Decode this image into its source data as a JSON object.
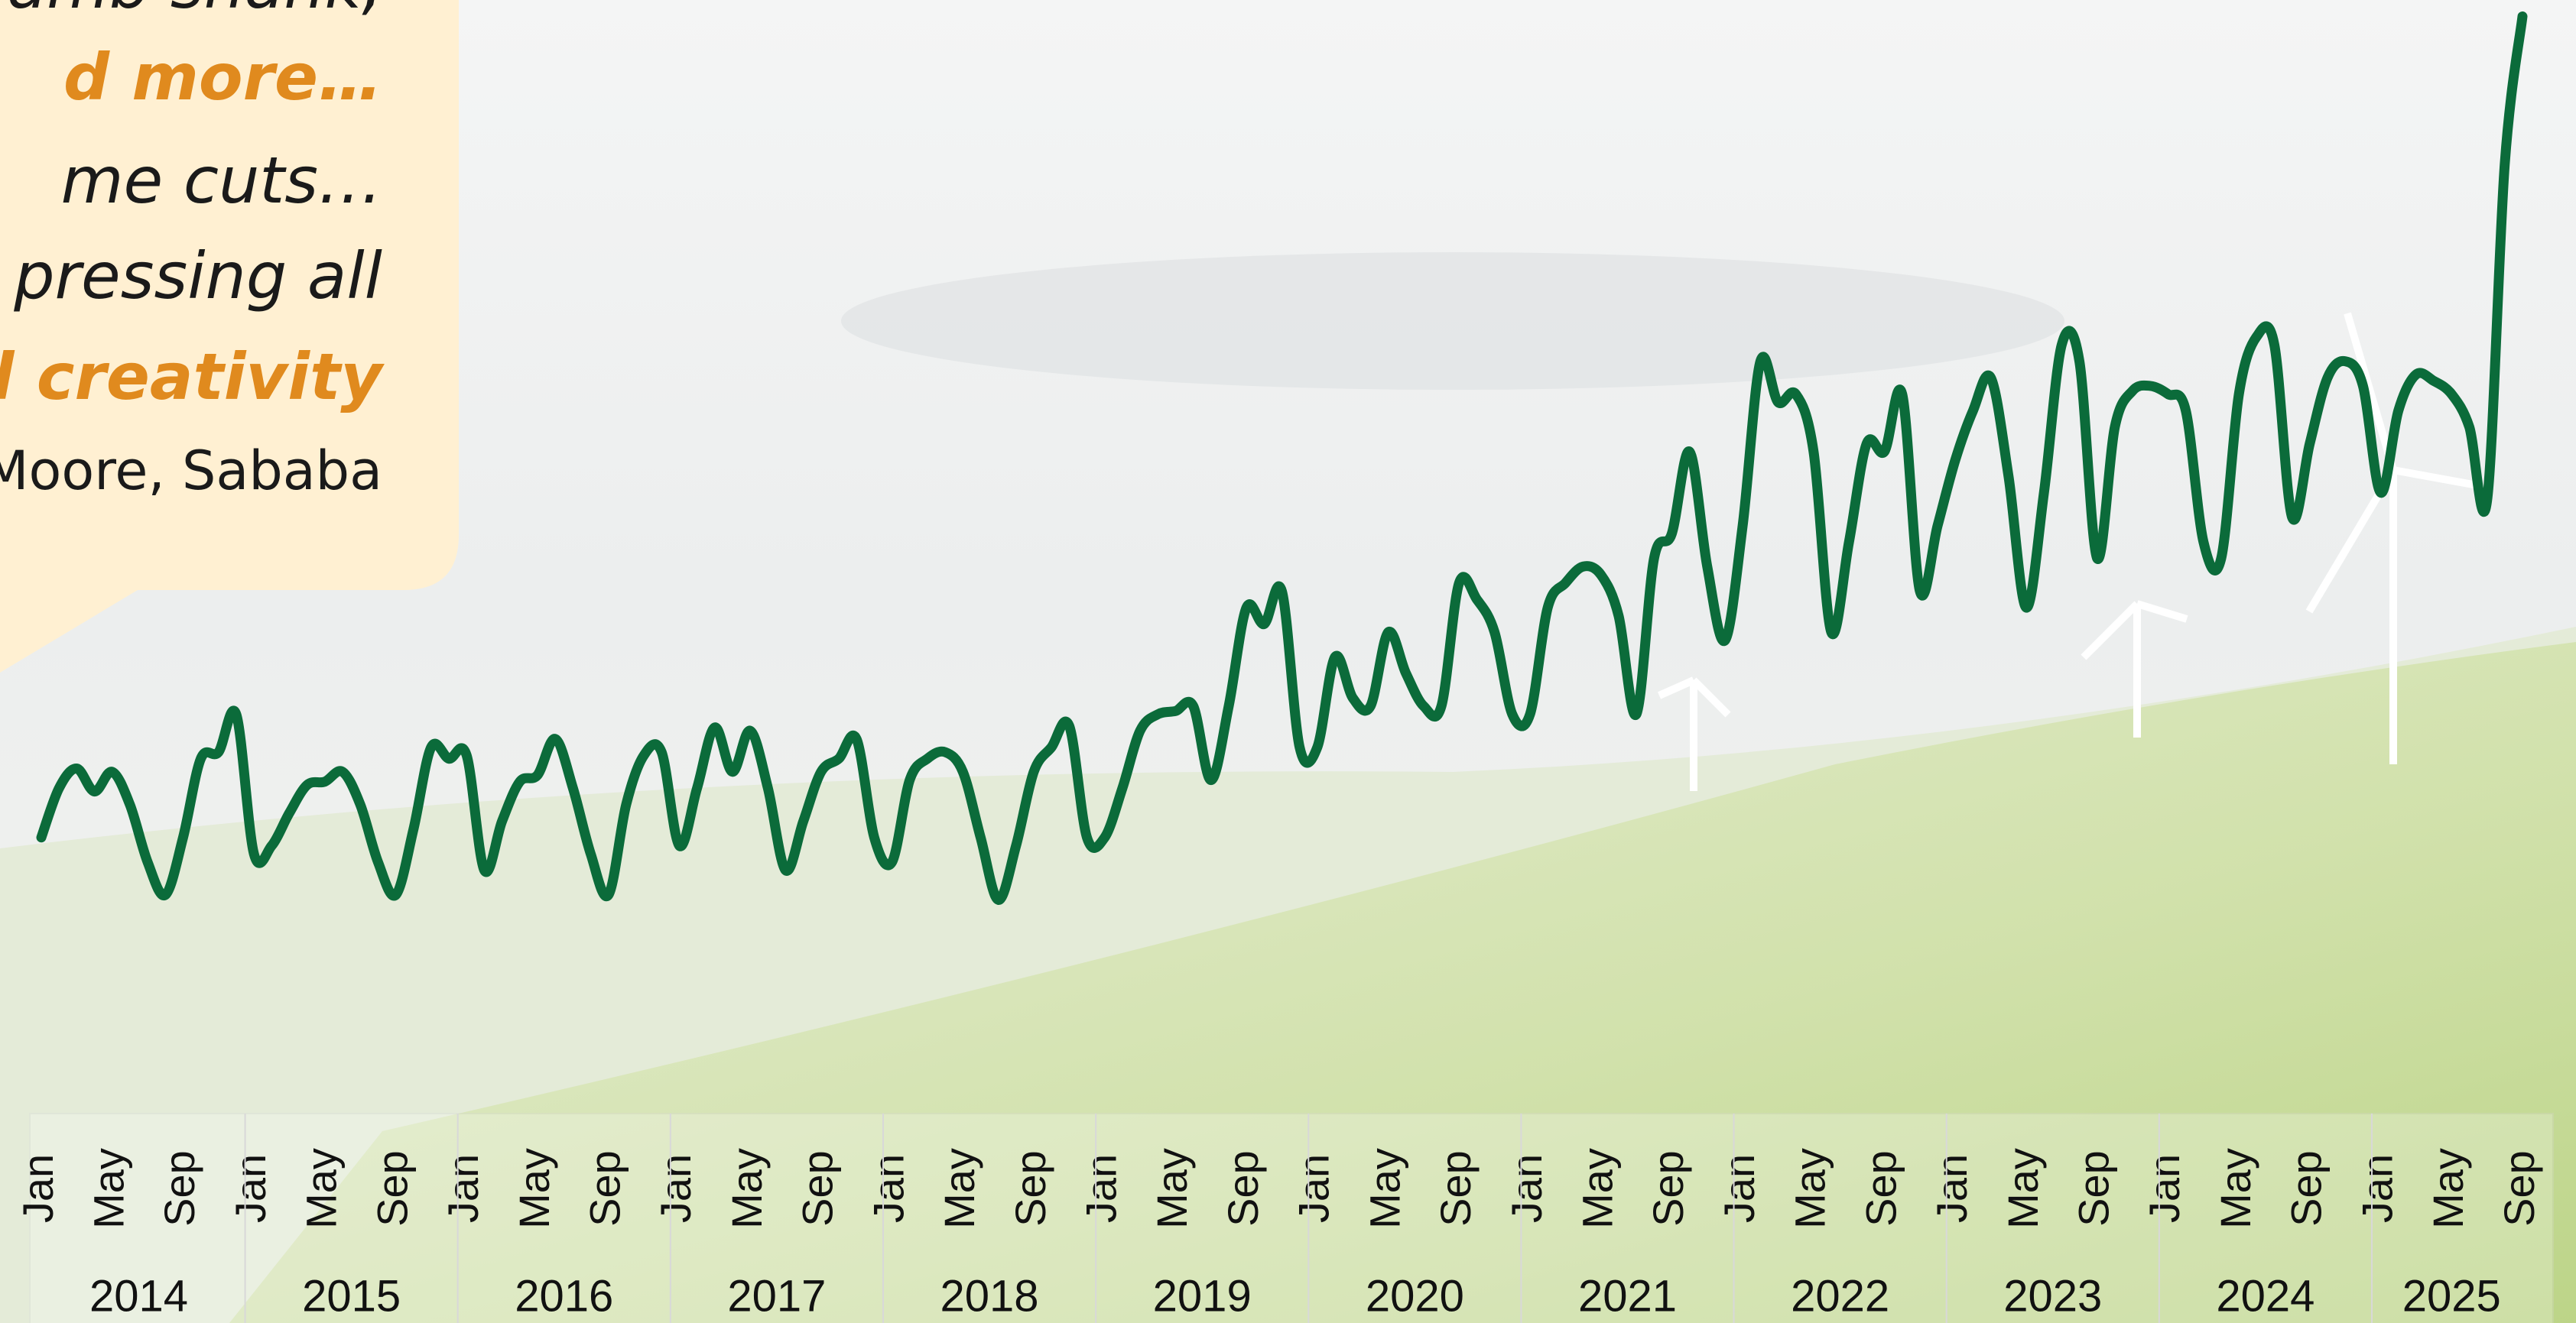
{
  "callout": {
    "lines": [
      {
        "text": "amb shank,",
        "style": "plain"
      },
      {
        "text": "d more…",
        "style": "highlight"
      },
      {
        "text": "me cuts…",
        "style": "plain"
      },
      {
        "text": "pressing all",
        "style": "plain"
      },
      {
        "text": "l creativity",
        "style": "highlight"
      },
      {
        "text": "Moore, Sababa",
        "style": "byline"
      }
    ]
  },
  "chart_data": {
    "type": "line",
    "categories": [
      "Jan",
      null,
      null,
      null,
      "May",
      null,
      null,
      null,
      "Sep",
      null,
      null,
      null,
      "Jan",
      null,
      null,
      null,
      "May",
      null,
      null,
      null,
      "Sep",
      null,
      null,
      null,
      "Jan",
      null,
      null,
      null,
      "May",
      null,
      null,
      null,
      "Sep",
      null,
      null,
      null,
      "Jan",
      null,
      null,
      null,
      "May",
      null,
      null,
      null,
      "Sep",
      null,
      null,
      null,
      "Jan",
      null,
      null,
      null,
      "May",
      null,
      null,
      null,
      "Sep",
      null,
      null,
      null,
      "Jan",
      null,
      null,
      null,
      "May",
      null,
      null,
      null,
      "Sep",
      null,
      null,
      null,
      "Jan",
      null,
      null,
      null,
      "May",
      null,
      null,
      null,
      "Sep",
      null,
      null,
      null,
      "Jan",
      null,
      null,
      null,
      "May",
      null,
      null,
      null,
      "Sep",
      null,
      null,
      null,
      "Jan",
      null,
      null,
      null,
      "May",
      null,
      null,
      null,
      "Sep",
      null,
      null,
      null,
      "Jan",
      null,
      null,
      null,
      "May",
      null,
      null,
      null,
      "Sep",
      null,
      null,
      null,
      "Jan",
      null,
      null,
      null,
      "May",
      null,
      null,
      null,
      "Sep",
      null,
      null,
      null,
      "Jan",
      null,
      null,
      null,
      "May",
      null,
      null,
      null,
      "Sep"
    ],
    "groups": [
      "2014",
      "2015",
      "2016",
      "2017",
      "2018",
      "2019",
      "2020",
      "2021",
      "2022",
      "2023",
      "2024",
      "2025"
    ],
    "series": [
      {
        "color": "#0b6b3a",
        "values": [
          190,
          220,
          232,
          218,
          230,
          210,
          175,
          155,
          190,
          238,
          242,
          265,
          180,
          185,
          205,
          222,
          224,
          230,
          210,
          175,
          155,
          195,
          245,
          238,
          240,
          170,
          200,
          224,
          228,
          250,
          220,
          180,
          155,
          210,
          240,
          242,
          185,
          220,
          257,
          230,
          255,
          220,
          170,
          200,
          230,
          238,
          250,
          190,
          175,
          225,
          238,
          242,
          230,
          190,
          152,
          185,
          230,
          245,
          258,
          190,
          190,
          220,
          255,
          265,
          267,
          270,
          225,
          270,
          330,
          320,
          340,
          245,
          245,
          300,
          275,
          270,
          315,
          290,
          270,
          270,
          345,
          335,
          315,
          265,
          265,
          330,
          345,
          355,
          350,
          325,
          265,
          360,
          375,
          425,
          355,
          310,
          380,
          480,
          455,
          460,
          425,
          315,
          370,
          430,
          425,
          460,
          340,
          380,
          420,
          450,
          470,
          410,
          330,
          400,
          490,
          480,
          360,
          440,
          462,
          465,
          460,
          450,
          370,
          360,
          460,
          495,
          490,
          385,
          430,
          470,
          480,
          465,
          400,
          450,
          472,
          468,
          460,
          440,
          395,
          600,
          690
        ]
      }
    ],
    "ylim": [
      0,
      700
    ]
  }
}
